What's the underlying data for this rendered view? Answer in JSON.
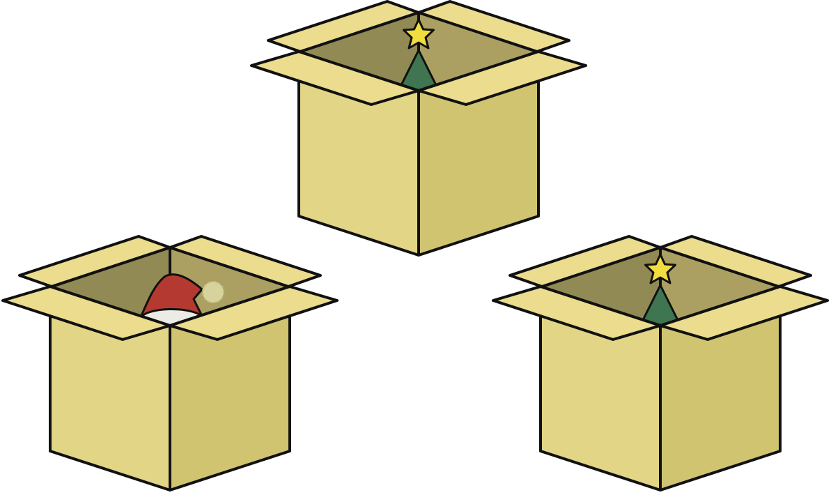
{
  "colors": {
    "box_front_left": "#e2d586",
    "box_front_right": "#d1c471",
    "inner_back_left": "#928a54",
    "inner_back_right": "#aba062",
    "flap": "#ebdc8e",
    "tree": "#3f7550",
    "star": "#f2dd40",
    "hat_red": "#b43a31",
    "hat_trim": "#ecece6",
    "pompom": "#d7d39c",
    "outline": "#111111"
  },
  "boxes": [
    {
      "name": "box-top-center",
      "contents": "christmas-tree"
    },
    {
      "name": "box-bottom-left",
      "contents": "santa-hat"
    },
    {
      "name": "box-bottom-right",
      "contents": "christmas-tree"
    }
  ]
}
